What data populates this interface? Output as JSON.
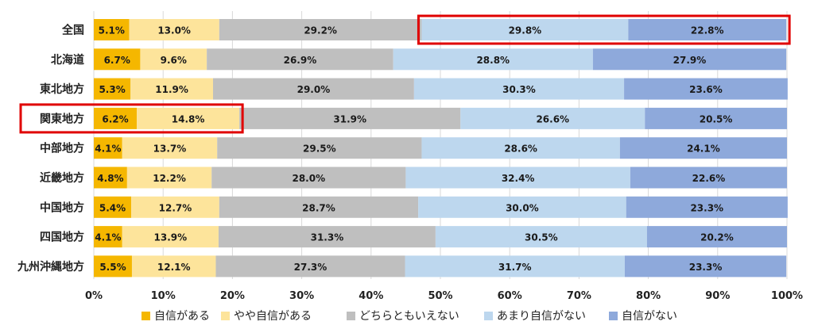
{
  "chart_data": {
    "type": "bar",
    "orientation": "horizontal",
    "stacked": "percent",
    "categories": [
      "全国",
      "北海道",
      "東北地方",
      "関東地方",
      "中部地方",
      "近畿地方",
      "中国地方",
      "四国地方",
      "九州沖縄地方"
    ],
    "series": [
      {
        "name": "自信がある",
        "color": "#F5B700",
        "values": [
          5.1,
          6.7,
          5.3,
          6.2,
          4.1,
          4.8,
          5.4,
          4.1,
          5.5
        ]
      },
      {
        "name": "やや自信がある",
        "color": "#FDE49B",
        "values": [
          13.0,
          9.6,
          11.9,
          14.8,
          13.7,
          12.2,
          12.7,
          13.9,
          12.1
        ]
      },
      {
        "name": "どちらともいえない",
        "color": "#BFBFBF",
        "values": [
          29.2,
          26.9,
          29.0,
          31.9,
          29.5,
          28.0,
          28.7,
          31.3,
          27.3
        ]
      },
      {
        "name": "あまり自信がない",
        "color": "#BDD7EE",
        "values": [
          29.8,
          28.8,
          30.3,
          26.6,
          28.6,
          32.4,
          30.0,
          30.5,
          31.7
        ]
      },
      {
        "name": "自信がない",
        "color": "#8EA9DB",
        "values": [
          22.8,
          27.9,
          23.6,
          20.5,
          24.1,
          22.6,
          23.3,
          20.2,
          23.3
        ]
      }
    ],
    "x_ticks": [
      "0%",
      "10%",
      "20%",
      "30%",
      "40%",
      "50%",
      "60%",
      "70%",
      "80%",
      "90%",
      "100%"
    ],
    "xlim": [
      0,
      100
    ],
    "grid": true,
    "legend_position": "bottom",
    "highlights": [
      {
        "category": "全国",
        "series": [
          "あまり自信がない",
          "自信がない"
        ],
        "color": "#E00000"
      },
      {
        "category": "関東地方",
        "series": [
          "自信がある",
          "やや自信がある"
        ],
        "include_category_label": true,
        "color": "#E00000"
      }
    ]
  }
}
